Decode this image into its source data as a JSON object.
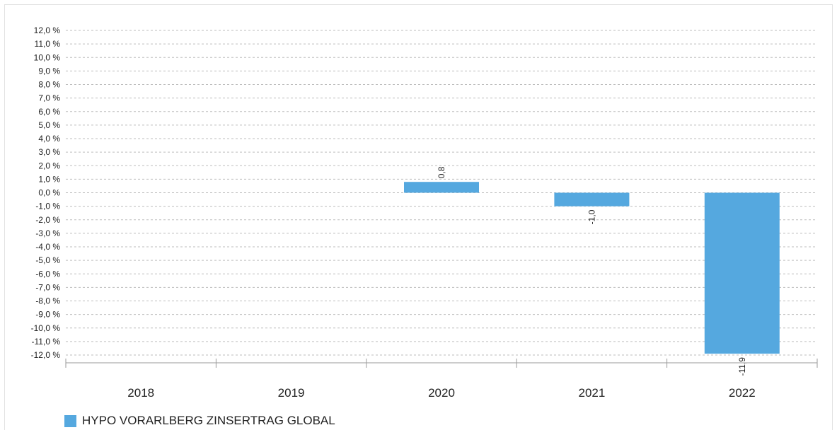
{
  "chart_data": {
    "type": "bar",
    "categories": [
      "2018",
      "2019",
      "2020",
      "2021",
      "2022"
    ],
    "series": [
      {
        "name": "HYPO VORARLBERG ZINSERTRAG GLOBAL",
        "values": [
          null,
          null,
          0.8,
          -1.0,
          -11.9
        ],
        "value_labels": [
          null,
          null,
          "0,8",
          "-1,0",
          "-11,9"
        ],
        "color": "#55a8df"
      }
    ],
    "y_ticks": [
      "12,0 %",
      "11,0 %",
      "10,0 %",
      "9,0 %",
      "8,0 %",
      "7,0 %",
      "6,0 %",
      "5,0 %",
      "4,0 %",
      "3,0 %",
      "2,0 %",
      "1,0 %",
      "0,0 %",
      "-1,0 %",
      "-2,0 %",
      "-3,0 %",
      "-4,0 %",
      "-5,0 %",
      "-6,0 %",
      "-7,0 %",
      "-8,0 %",
      "-9,0 %",
      "-10,0 %",
      "-11,0 %",
      "-12,0 %"
    ],
    "ylim": [
      -12,
      12
    ],
    "ytick_step": 1,
    "grid": true,
    "legend_position": "bottom-left"
  }
}
